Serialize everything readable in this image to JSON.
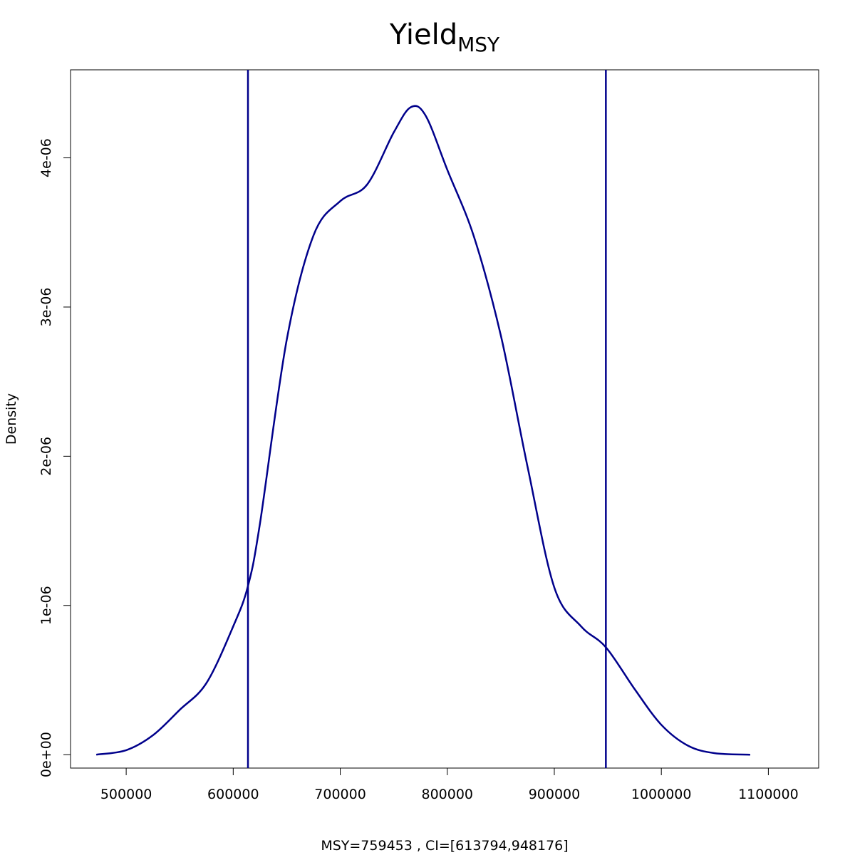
{
  "chart_data": {
    "type": "line",
    "title": "Yield",
    "title_subscript": "MSY",
    "xlabel": "MSY=759453 , CI=[613794,948176]",
    "ylabel": "Density",
    "xlim": [
      448000,
      1147000
    ],
    "ylim": [
      -9e-08,
      4.59e-06
    ],
    "x_ticks": [
      500000,
      600000,
      700000,
      800000,
      900000,
      1000000,
      1100000
    ],
    "x_tick_labels": [
      "500000",
      "600000",
      "700000",
      "800000",
      "900000",
      "1000000",
      "1100000"
    ],
    "y_ticks": [
      0,
      1e-06,
      2e-06,
      3e-06,
      4e-06
    ],
    "y_tick_labels": [
      "0e+00",
      "1e-06",
      "2e-06",
      "3e-06",
      "4e-06"
    ],
    "grid": false,
    "line_color": "#00008B",
    "series": [
      {
        "x": [
          472000,
          500000,
          525000,
          550000,
          575000,
          600000,
          613794,
          625000,
          650000,
          675000,
          700000,
          725000,
          750000,
          766000,
          780000,
          800000,
          825000,
          850000,
          875000,
          900000,
          925000,
          948176,
          975000,
          1000000,
          1025000,
          1050000,
          1083000
        ],
        "y": [
          0.0,
          3e-08,
          1.3e-07,
          3e-07,
          4.8e-07,
          8.6e-07,
          1.13e-06,
          1.55e-06,
          2.78e-06,
          3.48e-06,
          3.71e-06,
          3.82e-06,
          4.17e-06,
          4.34e-06,
          4.28e-06,
          3.92e-06,
          3.47e-06,
          2.81e-06,
          1.93e-06,
          1.12e-06,
          8.6e-07,
          7.2e-07,
          4.4e-07,
          2e-07,
          6e-08,
          1e-08,
          0.0
        ]
      }
    ],
    "vlines": [
      613794,
      948176
    ]
  }
}
